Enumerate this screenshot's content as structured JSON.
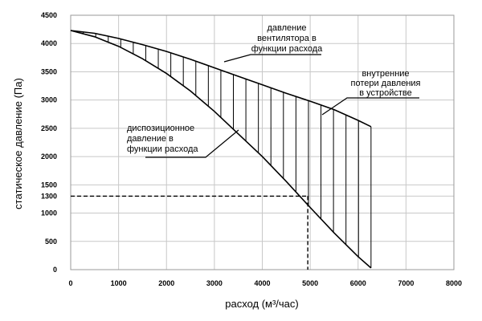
{
  "chart_data": {
    "type": "line",
    "xlabel": "расход (м³/час)",
    "ylabel": "статическое давление    (Па)",
    "xlim": [
      0,
      8000
    ],
    "ylim": [
      0,
      4500
    ],
    "x_ticks": [
      0,
      1000,
      2000,
      3000,
      4000,
      5000,
      6000,
      7000,
      8000
    ],
    "y_ticks": [
      0,
      500,
      1000,
      1300,
      1500,
      2000,
      2500,
      3000,
      3500,
      4000,
      4500
    ],
    "grid": true,
    "series": [
      {
        "name": "давление вентилятора в функции расхода",
        "x": [
          0,
          500,
          1000,
          1500,
          2000,
          2500,
          3000,
          3500,
          4000,
          4500,
          5000,
          5500,
          6000,
          6270
        ],
        "y": [
          4230,
          4180,
          4090,
          3980,
          3860,
          3720,
          3570,
          3420,
          3270,
          3120,
          2980,
          2830,
          2640,
          2530
        ]
      },
      {
        "name": "диспозиционное давление в функции расхода",
        "x": [
          0,
          500,
          1000,
          1500,
          2000,
          2500,
          3000,
          3500,
          4000,
          4500,
          5000,
          5500,
          6000,
          6270
        ],
        "y": [
          4230,
          4120,
          3950,
          3730,
          3470,
          3160,
          2800,
          2400,
          2000,
          1560,
          1100,
          650,
          230,
          30
        ]
      }
    ],
    "hatch_between_series": true,
    "reference_point": {
      "x": 4950,
      "y": 1300,
      "style": "dashed"
    },
    "annotations": [
      {
        "lines": [
          "давление",
          "вентилятора в",
          "функции  расхода"
        ]
      },
      {
        "lines": [
          "внутренние",
          "потери давления",
          "в устройстве"
        ]
      },
      {
        "lines": [
          "диспозиционное",
          "давление  в",
          "функции  расхода"
        ]
      }
    ],
    "colors": {
      "line": "#000000",
      "grid": "#c8c8c8",
      "background": "#ffffff"
    }
  }
}
